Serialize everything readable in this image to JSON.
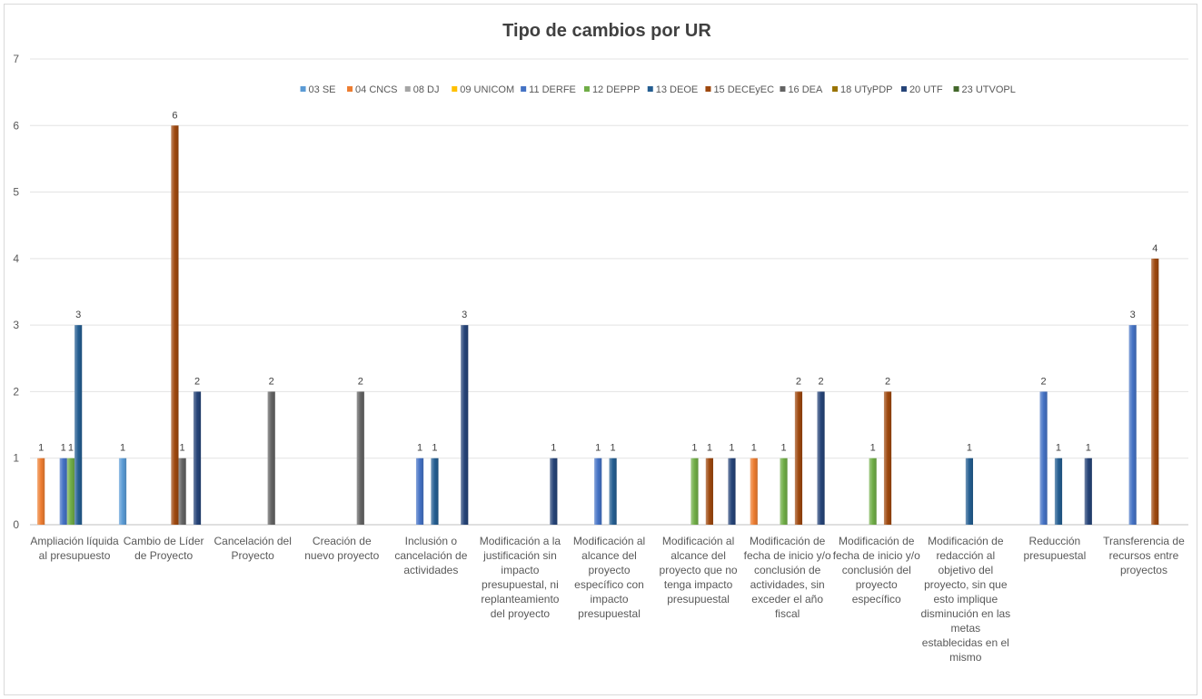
{
  "chart_data": {
    "type": "bar",
    "title": "Tipo de cambios por UR",
    "xlabel": "",
    "ylabel": "",
    "ylim": [
      0,
      7
    ],
    "yticks": [
      0,
      1,
      2,
      3,
      4,
      5,
      6,
      7
    ],
    "grid": true,
    "legend_position": "top",
    "categories": [
      "Ampliación líquida al presupuesto",
      "Cambio de Líder de Proyecto",
      "Cancelación del Proyecto",
      "Creación de nuevo proyecto",
      "Inclusión o cancelación de actividades",
      "Modificación a la justificación sin impacto presupuestal, ni replanteamiento del proyecto",
      "Modificación al alcance del proyecto específico con impacto presupuestal",
      "Modificación al alcance del proyecto que no tenga impacto presupuestal",
      "Modificación de fecha de inicio y/o conclusión de actividades, sin exceder el año fiscal",
      "Modificación de fecha de inicio y/o conclusión del proyecto específico",
      "Modificación de redacción al objetivo del proyecto, sin que esto implique disminución en las metas establecidas en el mismo",
      "Reducción presupuestal",
      "Transferencia de recursos entre proyectos"
    ],
    "category_lines": [
      [
        "Ampliación líquida",
        "al presupuesto"
      ],
      [
        "Cambio de Líder",
        "de Proyecto"
      ],
      [
        "Cancelación del",
        "Proyecto"
      ],
      [
        "Creación de",
        "nuevo proyecto"
      ],
      [
        "Inclusión o",
        "cancelación de",
        "actividades"
      ],
      [
        "Modificación a la",
        "justificación sin",
        "impacto",
        "presupuestal, ni",
        "replanteamiento",
        "del proyecto"
      ],
      [
        "Modificación al",
        "alcance del",
        "proyecto",
        "específico con",
        "impacto",
        "presupuestal"
      ],
      [
        "Modificación al",
        "alcance del",
        "proyecto que no",
        "tenga impacto",
        "presupuestal"
      ],
      [
        "Modificación de",
        "fecha de inicio y/o",
        "conclusión de",
        "actividades, sin",
        "exceder el año",
        "fiscal"
      ],
      [
        "Modificación de",
        "fecha de inicio y/o",
        "conclusión del",
        "proyecto",
        "específico"
      ],
      [
        "Modificación de",
        "redacción al",
        "objetivo del",
        "proyecto, sin que",
        "esto implique",
        "disminución en las",
        "metas",
        "establecidas en el",
        "mismo"
      ],
      [
        "Reducción",
        "presupuestal"
      ],
      [
        "Transferencia de",
        "recursos entre",
        "proyectos"
      ]
    ],
    "series": [
      {
        "name": "03 SE",
        "color": "#5b9bd5",
        "values": [
          0,
          1,
          0,
          0,
          0,
          0,
          0,
          0,
          0,
          0,
          0,
          0,
          0
        ]
      },
      {
        "name": "04 CNCS",
        "color": "#ed7d31",
        "values": [
          1,
          0,
          0,
          0,
          0,
          0,
          0,
          0,
          1,
          0,
          0,
          0,
          0
        ]
      },
      {
        "name": "08 DJ",
        "color": "#a5a5a5",
        "values": [
          0,
          0,
          0,
          0,
          0,
          0,
          0,
          0,
          0,
          0,
          0,
          0,
          0
        ]
      },
      {
        "name": "09 UNICOM",
        "color": "#ffc000",
        "values": [
          0,
          0,
          0,
          0,
          0,
          0,
          0,
          0,
          0,
          0,
          0,
          0,
          0
        ]
      },
      {
        "name": "11 DERFE",
        "color": "#4472c4",
        "values": [
          1,
          0,
          0,
          0,
          1,
          0,
          1,
          0,
          0,
          0,
          0,
          2,
          3
        ]
      },
      {
        "name": "12 DEPPP",
        "color": "#70ad47",
        "values": [
          1,
          0,
          0,
          0,
          0,
          0,
          0,
          1,
          1,
          1,
          0,
          0,
          0
        ]
      },
      {
        "name": "13 DEOE",
        "color": "#255e91",
        "values": [
          3,
          0,
          0,
          0,
          1,
          0,
          1,
          0,
          0,
          0,
          1,
          1,
          0
        ]
      },
      {
        "name": "15 DECEyEC",
        "color": "#9e480e",
        "values": [
          0,
          6,
          0,
          0,
          0,
          0,
          0,
          1,
          2,
          2,
          0,
          0,
          4
        ]
      },
      {
        "name": "16 DEA",
        "color": "#636363",
        "values": [
          0,
          1,
          2,
          2,
          0,
          0,
          0,
          0,
          0,
          0,
          0,
          0,
          0
        ]
      },
      {
        "name": "18 UTyPDP",
        "color": "#997300",
        "values": [
          0,
          0,
          0,
          0,
          0,
          0,
          0,
          0,
          0,
          0,
          0,
          0,
          0
        ]
      },
      {
        "name": "20 UTF",
        "color": "#264478",
        "values": [
          0,
          2,
          0,
          0,
          3,
          1,
          0,
          1,
          2,
          0,
          0,
          1,
          0
        ]
      },
      {
        "name": "23 UTVOPL",
        "color": "#43682b",
        "values": [
          0,
          0,
          0,
          0,
          0,
          0,
          0,
          0,
          0,
          0,
          0,
          0,
          0
        ]
      }
    ]
  }
}
